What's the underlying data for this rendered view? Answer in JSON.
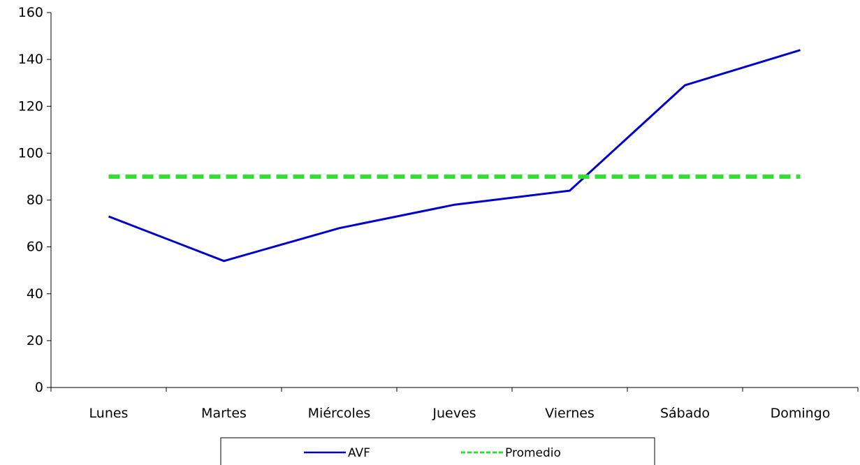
{
  "chart_data": {
    "type": "line",
    "categories": [
      "Lunes",
      "Martes",
      "Miércoles",
      "Jueves",
      "Viernes",
      "Sábado",
      "Domingo"
    ],
    "series": [
      {
        "name": "AVF",
        "values": [
          73,
          54,
          68,
          78,
          84,
          129,
          144
        ],
        "color": "#0000cc",
        "style": "solid"
      },
      {
        "name": "Promedio",
        "values": [
          90,
          90,
          90,
          90,
          90,
          90,
          90
        ],
        "color": "#33dd33",
        "style": "dashed"
      }
    ],
    "ylim": [
      0,
      160
    ],
    "yticks": [
      0,
      20,
      40,
      60,
      80,
      100,
      120,
      140,
      160
    ],
    "grid": false,
    "legend_position": "bottom"
  }
}
